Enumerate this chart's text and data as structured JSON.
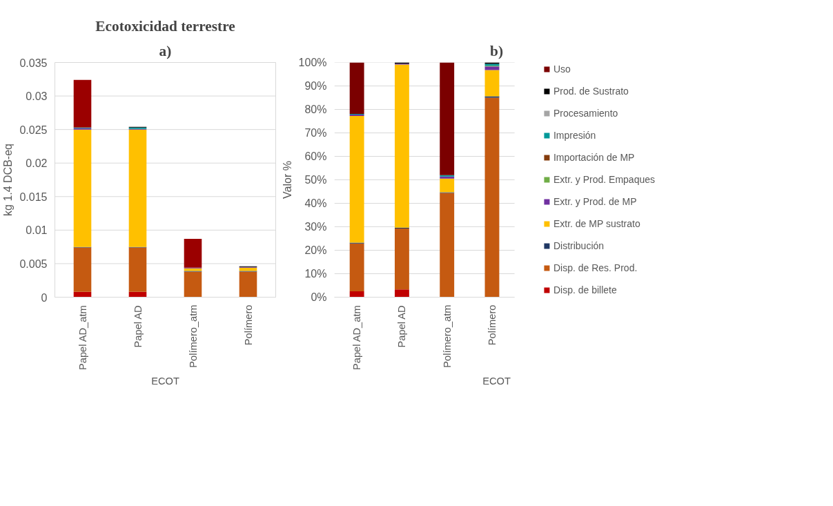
{
  "chart_data": [
    {
      "type": "bar",
      "title": "Ecotoxicidad terrestre",
      "subtitle": "a)",
      "xlabel": "ECOT",
      "ylabel": "kg 1.4 DCB-eq",
      "categories": [
        "Papel AD_atm",
        "Papel AD",
        "Polímero_atm",
        "Polímero"
      ],
      "stacked": true,
      "grid": "y",
      "legend": false,
      "ylim": [
        0,
        0.035
      ],
      "yticks": [
        0,
        0.005,
        0.01,
        0.015,
        0.02,
        0.025,
        0.03,
        0.035
      ],
      "series": [
        {
          "color": "#c00000",
          "values": [
            0.0008,
            0.0008,
            0,
            0
          ]
        },
        {
          "color": "#c55a11",
          "values": [
            0.0066,
            0.0066,
            0.0038,
            0.0038
          ]
        },
        {
          "color": "#203864",
          "values": [
            0.0001,
            0.0001,
            0.0001,
            0.0001
          ]
        },
        {
          "color": "#ffc000",
          "values": [
            0.0175,
            0.0175,
            0.0004,
            0.0005
          ]
        },
        {
          "color": "#7030a0",
          "values": [
            0.0002,
            0.0001,
            0.0001,
            0.0001
          ]
        },
        {
          "color": "#009999",
          "values": [
            0.0001,
            0.0002,
            0,
            0
          ]
        },
        {
          "color": "#000000",
          "values": [
            0,
            0.0001,
            0,
            0.0001
          ]
        },
        {
          "color": "#9b0000",
          "values": [
            0.0071,
            0,
            0.0043,
            0
          ]
        }
      ]
    },
    {
      "type": "bar",
      "title": "b)",
      "xlabel": "ECOT",
      "ylabel": "Valor %",
      "categories": [
        "Papel AD_atm",
        "Papel AD",
        "Polímero_atm",
        "Polímero"
      ],
      "stacked": true,
      "grid": "y",
      "legend": "right",
      "ylim": [
        0,
        100
      ],
      "yticks": [
        {
          "value": 0,
          "label": "0%"
        },
        {
          "value": 10,
          "label": "10%"
        },
        {
          "value": 20,
          "label": "20%"
        },
        {
          "value": 30,
          "label": "30%"
        },
        {
          "value": 40,
          "label": "40%"
        },
        {
          "value": 50,
          "label": "50%"
        },
        {
          "value": 60,
          "label": "60%"
        },
        {
          "value": 70,
          "label": "70%"
        },
        {
          "value": 80,
          "label": "80%"
        },
        {
          "value": 90,
          "label": "90%"
        },
        {
          "value": 100,
          "label": "100%"
        }
      ],
      "series": [
        {
          "name": "Disp. de billete",
          "color": "#c00000",
          "values": [
            2.5,
            3.3,
            0,
            0
          ]
        },
        {
          "name": "Disp. de Res. Prod.",
          "color": "#c55a11",
          "values": [
            20.4,
            26.0,
            44.4,
            85.0
          ]
        },
        {
          "name": "Distribución",
          "color": "#203864",
          "values": [
            0.3,
            0.3,
            0.3,
            0.6
          ]
        },
        {
          "name": "Extr. de MP sustrato",
          "color": "#ffc000",
          "values": [
            54.0,
            69.5,
            5.8,
            11.2
          ]
        },
        {
          "name": "Extr. y Prod. de MP",
          "color": "#7030a0",
          "values": [
            0.6,
            0.4,
            0.9,
            1.5
          ]
        },
        {
          "name": "Extr. y Prod. Empaques",
          "color": "#70ad47",
          "values": [
            0,
            0,
            0,
            0.3
          ]
        },
        {
          "name": "Importación de MP",
          "color": "#843c0c",
          "values": [
            0,
            0,
            0,
            0
          ]
        },
        {
          "name": "Impresión",
          "color": "#009999",
          "values": [
            0.3,
            null,
            0.6,
            0.8
          ]
        },
        {
          "name": "Procesamiento",
          "color": "#a5a5a5",
          "values": [
            0,
            0,
            0,
            null
          ]
        },
        {
          "name": "Prod. de Sustrato",
          "color": "#000000",
          "values": [
            0,
            0.5,
            0,
            0.6
          ]
        },
        {
          "name": "Uso",
          "color": "#7b0000",
          "values": [
            21.9,
            0,
            48.0,
            0
          ]
        }
      ]
    }
  ]
}
